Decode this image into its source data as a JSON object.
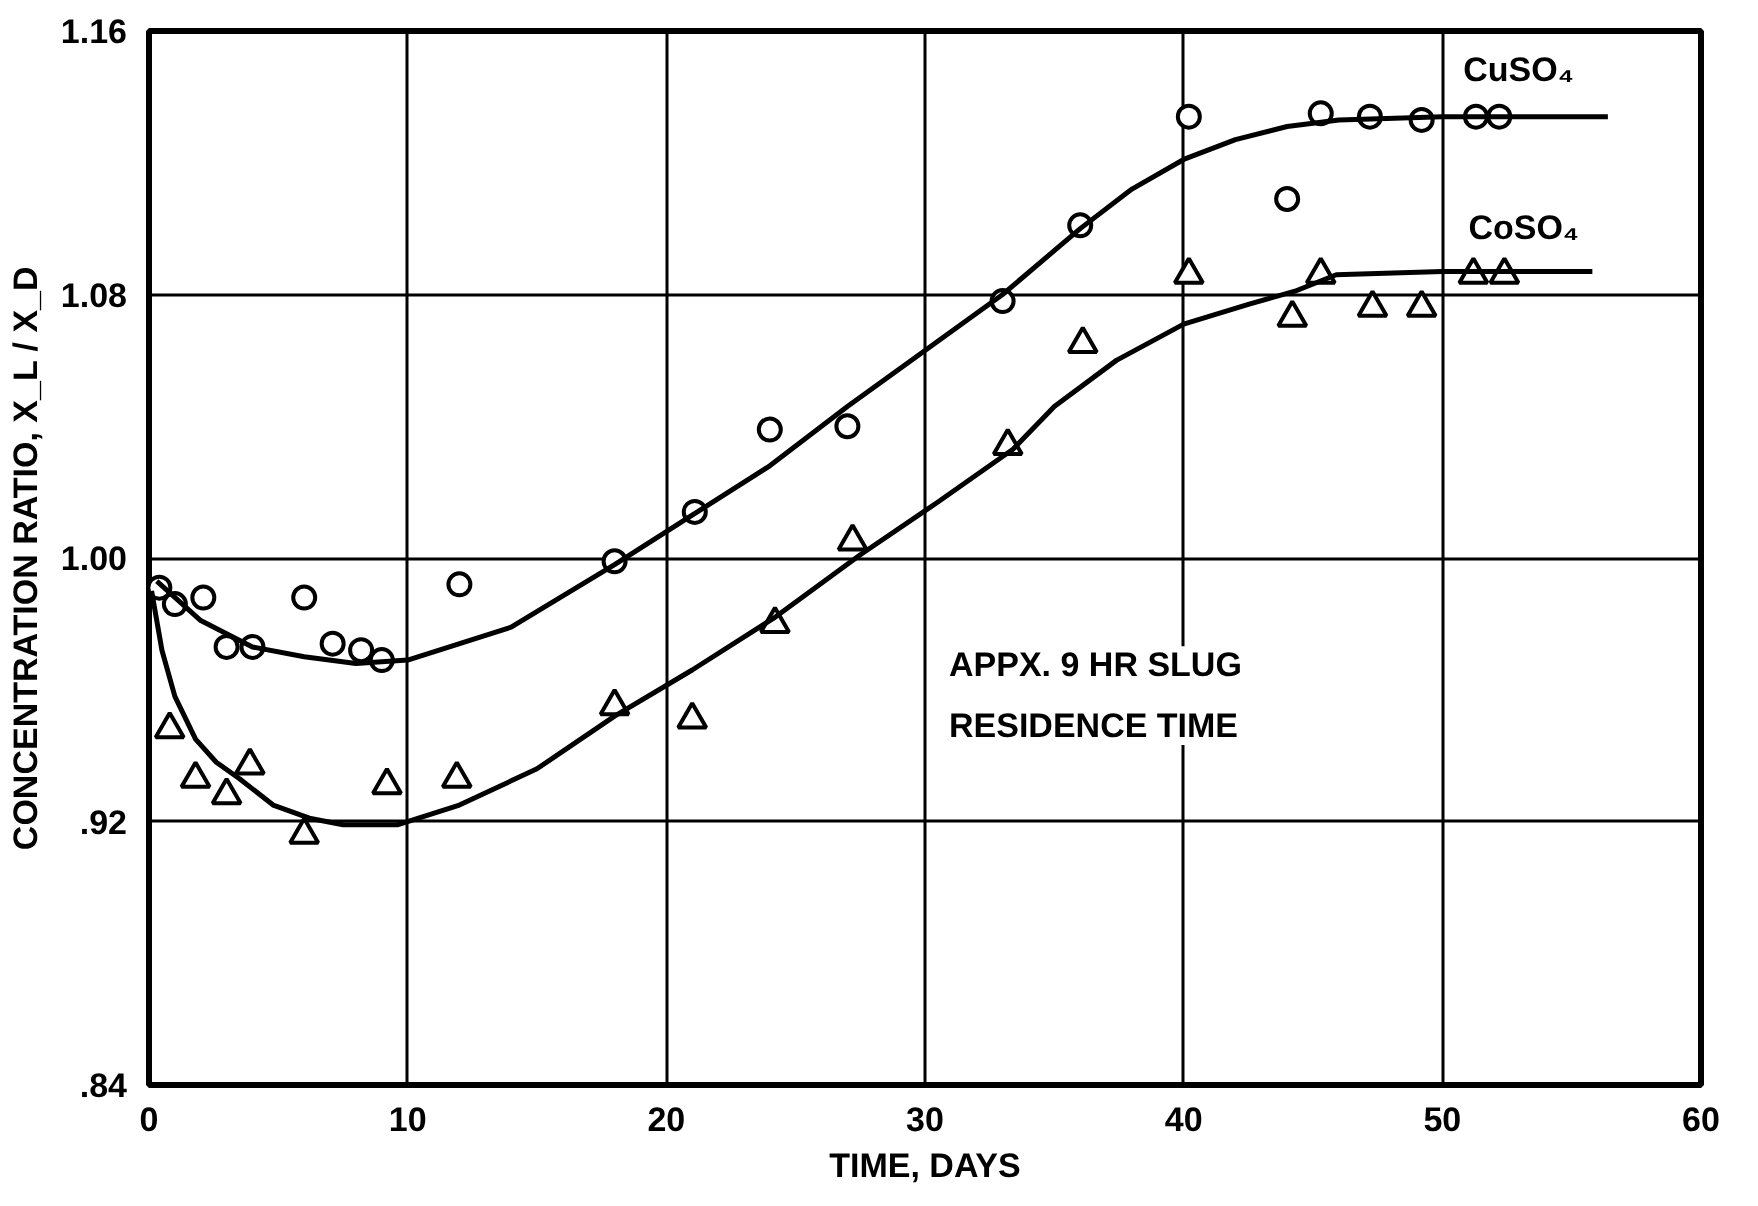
{
  "chart_data": {
    "type": "scatter",
    "xlabel": "TIME, DAYS",
    "ylabel": "CONCENTRATION RATIO, X_L / X_D",
    "xlim": [
      0,
      60
    ],
    "xticks": [
      0,
      10,
      20,
      30,
      40,
      50,
      60
    ],
    "ylim": [
      0.84,
      1.16
    ],
    "yticks": [
      {
        "value": 0.84,
        "label": ".84"
      },
      {
        "value": 0.92,
        "label": ".92"
      },
      {
        "value": 1.0,
        "label": "1.00"
      },
      {
        "value": 1.08,
        "label": "1.08"
      },
      {
        "value": 1.16,
        "label": "1.16"
      }
    ],
    "grid": true,
    "annotations": [
      "APPX. 9 HR SLUG\nRESIDENCE TIME"
    ],
    "series": [
      {
        "name": "CuSO₄",
        "marker": "circle",
        "color": "#000000",
        "x": [
          0.4,
          1.0,
          2.1,
          3.0,
          4.0,
          6.0,
          7.1,
          8.2,
          9.0,
          12.0,
          18.0,
          21.1,
          24.0,
          27.0,
          33.0,
          36.0,
          40.2,
          44.0,
          45.3,
          47.2,
          49.2,
          51.3,
          52.2
        ],
        "values": [
          0.991,
          0.986,
          0.988,
          0.973,
          0.973,
          0.988,
          0.974,
          0.972,
          0.969,
          0.992,
          0.999,
          1.014,
          1.039,
          1.04,
          1.078,
          1.101,
          1.134,
          1.109,
          1.135,
          1.134,
          1.133,
          1.134,
          1.134
        ]
      },
      {
        "name": "CoSO₄",
        "marker": "triangle",
        "color": "#000000",
        "x": [
          0.8,
          1.8,
          3.0,
          3.9,
          6.0,
          9.2,
          11.9,
          18.0,
          21.0,
          24.2,
          27.2,
          33.2,
          36.1,
          40.2,
          44.2,
          45.3,
          47.3,
          49.2,
          51.2,
          52.4
        ],
        "values": [
          0.948,
          0.933,
          0.928,
          0.937,
          0.916,
          0.931,
          0.933,
          0.955,
          0.951,
          0.98,
          1.005,
          1.034,
          1.065,
          1.086,
          1.073,
          1.086,
          1.076,
          1.076,
          1.086,
          1.086
        ]
      },
      {
        "type": "line",
        "line_style": "solid",
        "color": "#000000",
        "x": [
          0.3,
          2,
          4,
          6,
          8,
          10,
          14,
          18,
          21,
          24,
          27,
          30,
          33,
          36,
          38,
          40,
          42,
          44,
          46,
          50,
          56.4
        ],
        "values": [
          0.993,
          0.981,
          0.973,
          0.97,
          0.968,
          0.969,
          0.979,
          0.998,
          1.013,
          1.028,
          1.046,
          1.063,
          1.08,
          1.1,
          1.112,
          1.121,
          1.127,
          1.131,
          1.133,
          1.134,
          1.134
        ]
      },
      {
        "type": "line",
        "line_style": "solid",
        "color": "#000000",
        "x": [
          0.1,
          0.5,
          1.0,
          1.8,
          2.6,
          3.5,
          4.8,
          6.2,
          7.5,
          9.6,
          12,
          15,
          18,
          21,
          24.2,
          27.5,
          30.5,
          33.4,
          35,
          37.4,
          40,
          42.5,
          44.3,
          45.9,
          50,
          55.8
        ],
        "values": [
          0.99,
          0.972,
          0.958,
          0.945,
          0.938,
          0.933,
          0.925,
          0.921,
          0.919,
          0.919,
          0.925,
          0.936,
          0.952,
          0.966,
          0.982,
          1.001,
          1.017,
          1.033,
          1.046,
          1.06,
          1.071,
          1.077,
          1.081,
          1.086,
          1.087,
          1.087
        ]
      }
    ]
  }
}
